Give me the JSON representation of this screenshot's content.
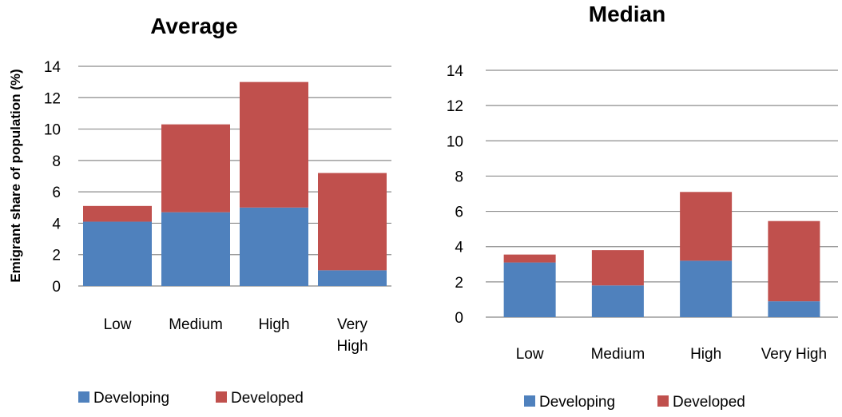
{
  "chart_data": [
    {
      "type": "bar",
      "stacked": true,
      "title": "Average",
      "ylabel": "Emigrant share of population  (%)",
      "xlabel": "",
      "categories": [
        "Low",
        "Medium",
        "High",
        "Very High"
      ],
      "category_lines": [
        [
          "Low"
        ],
        [
          "Medium"
        ],
        [
          "High"
        ],
        [
          "Very",
          "High"
        ]
      ],
      "series": [
        {
          "name": "Developing",
          "color": "#4F81BD",
          "values": [
            4.1,
            4.7,
            5.0,
            1.0
          ]
        },
        {
          "name": "Developed",
          "color": "#C0504D",
          "values": [
            1.0,
            5.6,
            8.0,
            6.2
          ]
        }
      ],
      "ylim": [
        0,
        14
      ],
      "yticks": [
        0,
        2,
        4,
        6,
        8,
        10,
        12,
        14
      ],
      "grid": true,
      "legend": "bottom"
    },
    {
      "type": "bar",
      "stacked": true,
      "title": "Median",
      "ylabel": "",
      "xlabel": "",
      "categories": [
        "Low",
        "Medium",
        "High",
        "Very High"
      ],
      "category_lines": [
        [
          "Low"
        ],
        [
          "Medium"
        ],
        [
          "High"
        ],
        [
          "Very High"
        ]
      ],
      "series": [
        {
          "name": "Developing",
          "color": "#4F81BD",
          "values": [
            3.1,
            1.8,
            3.2,
            0.9
          ]
        },
        {
          "name": "Developed",
          "color": "#C0504D",
          "values": [
            0.45,
            2.0,
            3.9,
            4.55
          ]
        }
      ],
      "ylim": [
        0,
        14
      ],
      "yticks": [
        0,
        2,
        4,
        6,
        8,
        10,
        12,
        14
      ],
      "grid": true,
      "legend": "bottom"
    }
  ]
}
